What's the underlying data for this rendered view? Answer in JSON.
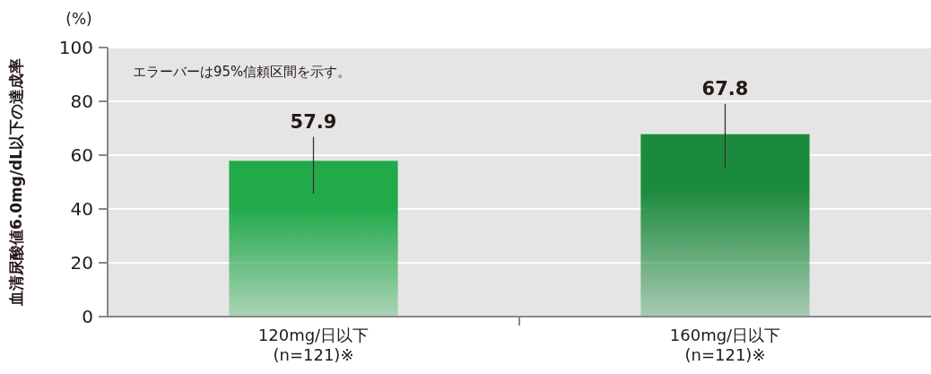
{
  "chart_data": {
    "type": "bar",
    "categories": [
      "120mg/日以下\n(n=121)※",
      "160mg/日以下\n(n=121)※"
    ],
    "values": [
      57.9,
      67.8
    ],
    "colors": [
      "#22aa4a",
      "#1b8a3c"
    ],
    "errors": [
      [
        45.7,
        66.8
      ],
      [
        55.1,
        79.1
      ]
    ],
    "data_labels": true,
    "ylabel": "血清尿酸値6.0mg/dL以下の達成率",
    "annotations": [
      "(%)",
      "エラーバーは95%信頼区間を示す。"
    ],
    "ylim": [
      0,
      100
    ],
    "yticks": [
      0,
      20,
      40,
      60,
      80,
      100
    ],
    "grid": "y"
  }
}
